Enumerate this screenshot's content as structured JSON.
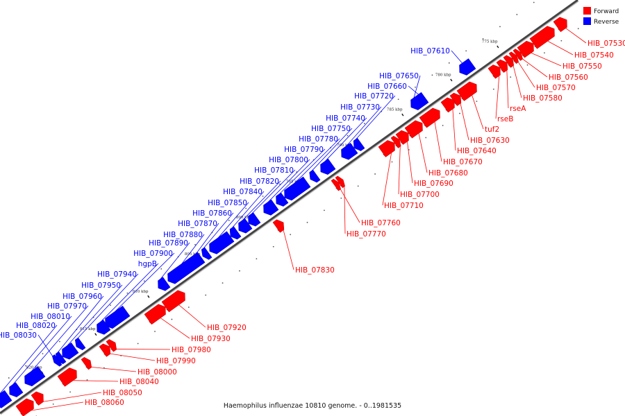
{
  "caption": "Haemophilus influenzae 10810 genome. - 0..1981535",
  "legend": [
    {
      "label": "Forward",
      "color": "#ff0000"
    },
    {
      "label": "Reverse",
      "color": "#0000ff"
    }
  ],
  "colors": {
    "forward": "#ff0000",
    "reverse": "#0000ff",
    "backbone": "#555555"
  },
  "ticks": [
    "775 kbp",
    "780 kbp",
    "785 kbp",
    "790 kbp",
    "795 kbp",
    "800 kbp",
    "805 kbp",
    "810 kbp",
    "815 kbp",
    "820 kbp"
  ],
  "forward_genes": [
    "HIB_07530",
    "HIB_07540",
    "HIB_07550",
    "HIB_07560",
    "HIB_07570",
    "HIB_07580",
    "rseA",
    "rseB",
    "tuf2",
    "HIB_07630",
    "HIB_07640",
    "HIB_07670",
    "HIB_07680",
    "HIB_07690",
    "HIB_07700",
    "HIB_07710",
    "HIB_07760",
    "HIB_07770",
    "HIB_07830",
    "HIB_07920",
    "HIB_07930",
    "HIB_07980",
    "HIB_07990",
    "HIB_08000",
    "HIB_08040",
    "HIB_08050",
    "HIB_08060"
  ],
  "reverse_genes": [
    "HIB_07610",
    "HIB_07650",
    "HIB_07660",
    "HIB_07720",
    "HIB_07730",
    "HIB_07740",
    "HIB_07750",
    "HIB_07780",
    "HIB_07790",
    "HIB_07800",
    "HIB_07810",
    "HIB_07820",
    "HIB_07840",
    "HIB_07850",
    "HIB_07860",
    "HIB_07870",
    "HIB_07880",
    "HIB_07890",
    "HIB_07900",
    "hgpB",
    "HIB_07940",
    "HIB_07950",
    "HIB_07960",
    "HIB_07970",
    "HIB_08010",
    "HIB_08020",
    "HIB_08030"
  ]
}
